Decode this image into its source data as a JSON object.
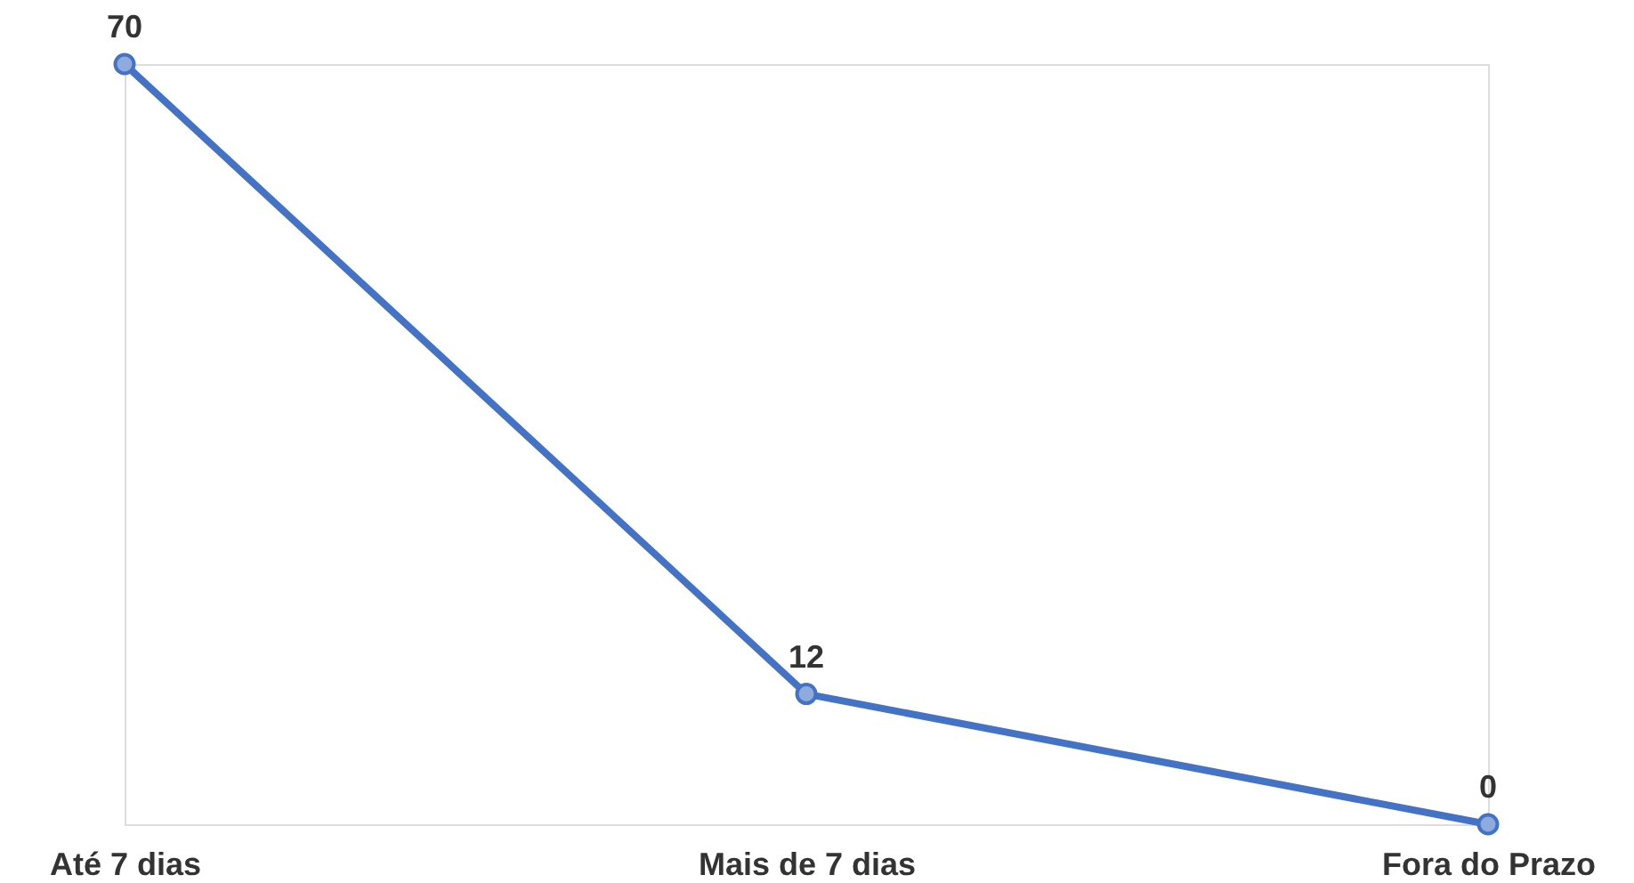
{
  "chart_data": {
    "type": "line",
    "categories": [
      "Até 7 dias",
      "Mais de 7 dias",
      "Fora do Prazo"
    ],
    "series": [
      {
        "color": "#4472c4",
        "values": [
          70,
          12,
          0
        ]
      }
    ],
    "marker": "circle",
    "data_labels": true,
    "grid": false,
    "legend": false
  }
}
